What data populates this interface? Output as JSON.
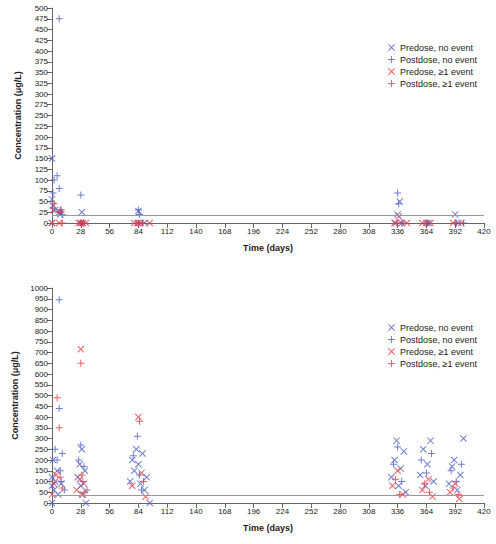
{
  "chart_data": [
    {
      "type": "scatter",
      "x_label": "Time (days)",
      "y_label": "Concentration (μg/L)",
      "xlim": [
        0,
        420
      ],
      "xticks": [
        0,
        28,
        56,
        84,
        112,
        140,
        168,
        196,
        224,
        252,
        280,
        308,
        336,
        364,
        392,
        420
      ],
      "ylim": [
        0,
        500
      ],
      "yticks": [
        0,
        25,
        50,
        75,
        100,
        125,
        150,
        175,
        200,
        225,
        250,
        275,
        300,
        325,
        350,
        375,
        400,
        425,
        450,
        475,
        500
      ],
      "grid": false,
      "legend": "upper right",
      "reference_line": 17,
      "series": [
        {
          "name": "Predose, no event",
          "color": "#4b5cc4",
          "marker": "x",
          "x": [
            0,
            0,
            1,
            0,
            3,
            7,
            8,
            28,
            29,
            30,
            83,
            84,
            86,
            90,
            334,
            336,
            338,
            340,
            364,
            366,
            392,
            395
          ],
          "values": [
            150,
            55,
            40,
            0,
            30,
            25,
            20,
            0,
            25,
            0,
            0,
            28,
            0,
            0,
            0,
            20,
            50,
            0,
            0,
            0,
            20,
            0
          ]
        },
        {
          "name": "Postdose, no event",
          "color": "#4b5cc4",
          "marker": "plus",
          "x": [
            1,
            2,
            5,
            7,
            7,
            8,
            9,
            10,
            28,
            29,
            84,
            85,
            336,
            337,
            340,
            365,
            393,
            400
          ],
          "values": [
            70,
            100,
            110,
            475,
            80,
            30,
            25,
            20,
            65,
            0,
            30,
            20,
            70,
            45,
            0,
            0,
            0,
            0
          ]
        },
        {
          "name": "Predose, ≥1 event",
          "color": "#e8383d",
          "marker": "x",
          "x": [
            0,
            1,
            7,
            26,
            28,
            33,
            80,
            84,
            95,
            333,
            337,
            345,
            360,
            368,
            390,
            398
          ],
          "values": [
            0,
            30,
            0,
            0,
            0,
            0,
            0,
            0,
            0,
            0,
            15,
            0,
            0,
            0,
            0,
            0
          ]
        },
        {
          "name": "Postdose, ≥1 event",
          "color": "#e8383d",
          "marker": "plus",
          "x": [
            2,
            7,
            9,
            10,
            28,
            31,
            84,
            88,
            336,
            341,
            364,
            392
          ],
          "values": [
            45,
            25,
            30,
            0,
            0,
            0,
            0,
            0,
            0,
            0,
            0,
            0
          ]
        }
      ]
    },
    {
      "type": "scatter",
      "x_label": "Time (days)",
      "y_label": "Concentration (μg/L)",
      "xlim": [
        0,
        420
      ],
      "xticks": [
        0,
        28,
        56,
        84,
        112,
        140,
        168,
        196,
        224,
        252,
        280,
        308,
        336,
        364,
        392,
        420
      ],
      "ylim": [
        0,
        1000
      ],
      "yticks": [
        0,
        50,
        100,
        150,
        200,
        250,
        300,
        350,
        400,
        450,
        500,
        550,
        600,
        650,
        700,
        750,
        800,
        850,
        900,
        950,
        1000
      ],
      "grid": false,
      "legend": "upper right",
      "reference_line": 35,
      "series": [
        {
          "name": "Predose, no event",
          "color": "#4b5cc4",
          "marker": "x",
          "x": [
            0,
            0,
            1,
            2,
            3,
            0,
            5,
            6,
            9,
            25,
            27,
            28,
            29,
            30,
            32,
            33,
            76,
            78,
            80,
            82,
            84,
            86,
            88,
            90,
            92,
            95,
            330,
            333,
            335,
            337,
            339,
            342,
            344,
            358,
            361,
            363,
            365,
            368,
            371,
            386,
            389,
            391,
            394,
            397,
            400
          ],
          "values": [
            80,
            120,
            200,
            60,
            100,
            0,
            150,
            40,
            90,
            120,
            180,
            80,
            250,
            40,
            150,
            0,
            100,
            200,
            150,
            250,
            180,
            90,
            230,
            60,
            120,
            0,
            120,
            200,
            290,
            80,
            160,
            240,
            50,
            130,
            250,
            80,
            180,
            290,
            100,
            90,
            170,
            200,
            60,
            130,
            300
          ]
        },
        {
          "name": "Postdose, no event",
          "color": "#4b5cc4",
          "marker": "plus",
          "x": [
            3,
            5,
            7,
            7,
            8,
            9,
            10,
            12,
            26,
            28,
            30,
            31,
            34,
            79,
            83,
            85,
            87,
            332,
            336,
            340,
            359,
            364,
            369,
            388,
            393,
            398
          ],
          "values": [
            250,
            200,
            945,
            440,
            150,
            100,
            230,
            60,
            200,
            270,
            100,
            170,
            60,
            220,
            310,
            130,
            60,
            180,
            260,
            100,
            200,
            140,
            230,
            150,
            100,
            180
          ]
        },
        {
          "name": "Predose, ≥1 event",
          "color": "#e8383d",
          "marker": "x",
          "x": [
            0,
            2,
            4,
            24,
            27,
            28,
            29,
            31,
            78,
            84,
            87,
            91,
            331,
            336,
            341,
            360,
            366,
            370,
            387,
            392,
            396
          ],
          "values": [
            40,
            90,
            130,
            60,
            110,
            715,
            40,
            90,
            80,
            400,
            140,
            30,
            80,
            150,
            40,
            60,
            110,
            30,
            50,
            90,
            20
          ]
        },
        {
          "name": "Postdose, ≥1 event",
          "color": "#e8383d",
          "marker": "plus",
          "x": [
            5,
            7,
            8,
            10,
            28,
            29,
            32,
            85,
            89,
            334,
            338,
            362,
            367,
            390,
            395
          ],
          "values": [
            490,
            350,
            120,
            70,
            650,
            130,
            50,
            380,
            100,
            110,
            40,
            90,
            50,
            70,
            40
          ]
        }
      ]
    }
  ]
}
